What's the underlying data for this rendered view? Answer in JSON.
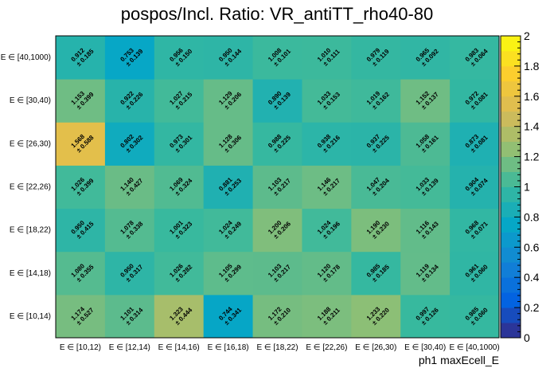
{
  "chart_data": {
    "type": "heatmap",
    "title": "pospos/Incl. Ratio: VR_antiTT_rho40-80",
    "xlabel": "ph1 maxEcell_E",
    "ylabel": "",
    "x_categories": [
      "E ∈ [10,12)",
      "E ∈ [12,14)",
      "E ∈ [14,16)",
      "E ∈ [16,18)",
      "E ∈ [18,22)",
      "E ∈ [22,26)",
      "E ∈ [26,30)",
      "E ∈ [30,40)",
      "E ∈ [40,1000)"
    ],
    "y_categories": [
      "E ∈ [10,14)",
      "E ∈ [14,18)",
      "E ∈ [18,22)",
      "E ∈ [22,26)",
      "E ∈ [26,30)",
      "E ∈ [30,40)",
      "E ∈ [40,1000)"
    ],
    "values": [
      [
        1.174,
        1.101,
        1.323,
        0.744,
        1.172,
        1.188,
        1.233,
        0.997,
        0.985
      ],
      [
        1.08,
        0.95,
        1.026,
        1.105,
        1.103,
        1.12,
        0.985,
        1.119,
        0.961
      ],
      [
        0.95,
        1.078,
        1.001,
        1.024,
        1.2,
        1.024,
        1.19,
        1.116,
        0.968
      ],
      [
        1.026,
        1.14,
        1.069,
        0.881,
        1.103,
        1.146,
        1.047,
        1.033,
        0.904
      ],
      [
        1.568,
        0.802,
        0.973,
        1.128,
        0.988,
        0.938,
        0.937,
        1.058,
        0.873
      ],
      [
        1.153,
        0.922,
        1.027,
        1.129,
        0.89,
        1.033,
        1.019,
        1.152,
        0.972
      ],
      [
        0.912,
        0.753,
        0.956,
        0.95,
        1.008,
        1.01,
        0.979,
        0.965,
        0.983
      ]
    ],
    "value_labels": [
      [
        "1.174",
        "1.101",
        "1.323",
        "0.744",
        "1.172",
        "1.188",
        "1.233",
        "0.997",
        "0.985"
      ],
      [
        "1.080",
        "0.950",
        "1.026",
        "1.105",
        "1.103",
        "1.120",
        "0.985",
        "1.119",
        "0.961"
      ],
      [
        "0.950",
        "1.078",
        "1.001",
        "1.024",
        "1.200",
        "1.024",
        "1.190",
        "1.116",
        "0.968"
      ],
      [
        "1.026",
        "1.140",
        "1.069",
        "0.881",
        "1.103",
        "1.146",
        "1.047",
        "1.033",
        "0.904"
      ],
      [
        "1.568",
        "0.802",
        "0.973",
        "1.128",
        "0.988",
        "0.938",
        "0.937",
        "1.058",
        "0.873"
      ],
      [
        "1.153",
        "0.922",
        "1.027",
        "1.129",
        "0.890",
        "1.033",
        "1.019",
        "1.152",
        "0.972"
      ],
      [
        "0.912",
        "0.753",
        "0.956",
        "0.950",
        "1.008",
        "1.010",
        "0.979",
        "0.965",
        "0.983"
      ]
    ],
    "error_labels": [
      [
        "± 0.527",
        "± 0.314",
        "± 0.444",
        "± 0.341",
        "± 0.210",
        "± 0.211",
        "± 0.220",
        "± 0.126",
        "± 0.060"
      ],
      [
        "± 0.355",
        "± 0.317",
        "± 0.282",
        "± 0.299",
        "± 0.217",
        "± 0.178",
        "± 0.185",
        "± 0.134",
        "± 0.060"
      ],
      [
        "± 0.415",
        "± 0.338",
        "± 0.323",
        "± 0.249",
        "± 0.206",
        "± 0.196",
        "± 0.230",
        "± 0.143",
        "± 0.071"
      ],
      [
        "± 0.399",
        "± 0.427",
        "± 0.324",
        "± 0.253",
        "± 0.217",
        "± 0.217",
        "± 0.204",
        "± 0.139",
        "± 0.074"
      ],
      [
        "± 0.588",
        "± 0.302",
        "± 0.301",
        "± 0.306",
        "± 0.225",
        "± 0.216",
        "± 0.225",
        "± 0.161",
        "± 0.081"
      ],
      [
        "± 0.399",
        "± 0.226",
        "± 0.215",
        "± 0.206",
        "± 0.139",
        "± 0.153",
        "± 0.162",
        "± 0.137",
        "± 0.081"
      ],
      [
        "± 0.185",
        "± 0.139",
        "± 0.150",
        "± 0.144",
        "± 0.101",
        "± 0.111",
        "± 0.119",
        "± 0.092",
        "± 0.064"
      ]
    ],
    "zlim": [
      0,
      2
    ],
    "z_ticks": [
      "0",
      "0.2",
      "0.4",
      "0.6",
      "0.8",
      "1",
      "1.2",
      "1.4",
      "1.6",
      "1.8",
      "2"
    ],
    "colormap": [
      "#352a87",
      "#0363e1",
      "#1485d4",
      "#06a7c6",
      "#38b99e",
      "#92bf73",
      "#d9ba56",
      "#fcce2e",
      "#f9fb0e"
    ],
    "grid": false,
    "legend": "colorbar-right"
  }
}
